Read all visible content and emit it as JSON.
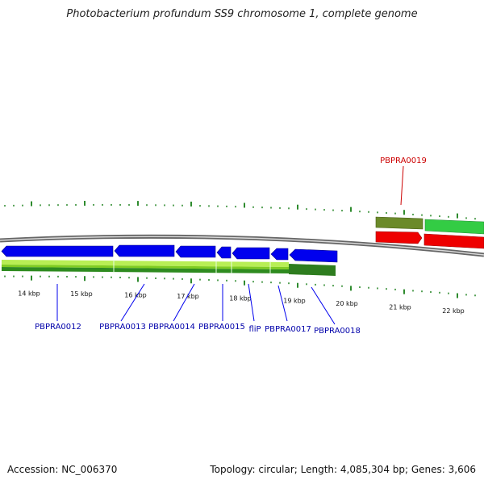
{
  "title": "Photobacterium profundum SS9 chromosome 1, complete genome",
  "footer": {
    "accession": "Accession: NC_006370",
    "summary": "Topology: circular; Length: 4,085,304 bp; Genes: 3,606"
  },
  "colors": {
    "backbone": "#888888",
    "tick": "#2e8b2e",
    "gene_cds": "#0000ee",
    "gene_highlight": "#ee0000",
    "label_blue": "#0000aa",
    "label_red": "#cc0000",
    "feature_light_green": "#99dd33",
    "feature_dark_green": "#2e7d1f",
    "feature_olive": "#6b8a2a",
    "feature_bright_green": "#33cc33"
  },
  "kbp_labels": [
    "14 kbp",
    "15 kbp",
    "16 kbp",
    "17 kbp",
    "18 kbp",
    "19 kbp",
    "20 kbp",
    "21 kbp",
    "22 kbp"
  ],
  "genes": [
    {
      "label": "PBPRA0012",
      "color": "blue"
    },
    {
      "label": "PBPRA0013",
      "color": "blue"
    },
    {
      "label": "PBPRA0014",
      "color": "blue"
    },
    {
      "label": "PBPRA0015",
      "color": "blue"
    },
    {
      "label": "fliP",
      "color": "blue"
    },
    {
      "label": "PBPRA0017",
      "color": "blue"
    },
    {
      "label": "PBPRA0018",
      "color": "blue"
    },
    {
      "label": "PBPRA0019",
      "color": "red"
    }
  ]
}
